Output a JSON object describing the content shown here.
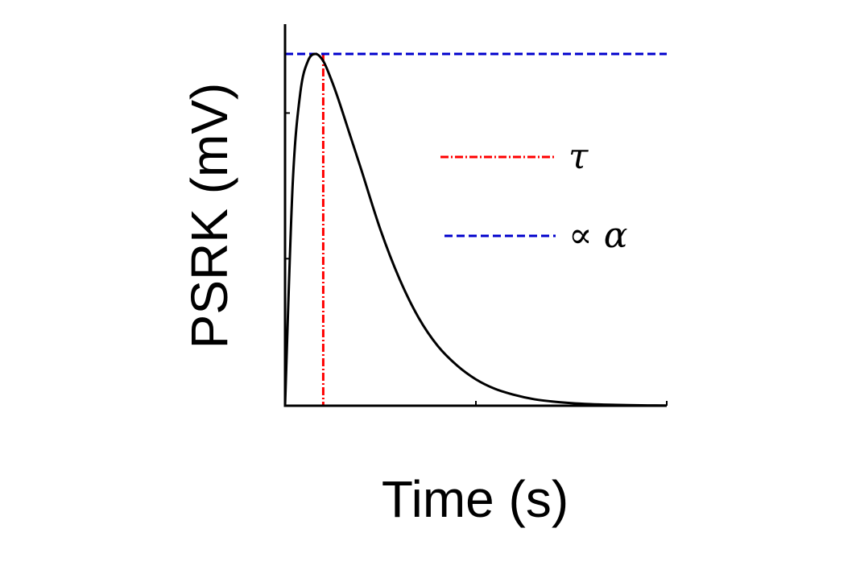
{
  "chart_data": {
    "type": "line",
    "xlabel": "Time (s)",
    "ylabel": "PSRK (mV)",
    "xlim": [
      0,
      1
    ],
    "ylim": [
      0,
      1.02
    ],
    "grid": false,
    "legend_position": "right",
    "series": [
      {
        "color": "#000000",
        "x": [
          0,
          0.02,
          0.04,
          0.06,
          0.08,
          0.1,
          0.12,
          0.14,
          0.17,
          0.2,
          0.25,
          0.3,
          0.35,
          0.4,
          0.45,
          0.5,
          0.55,
          0.6,
          0.65,
          0.7,
          0.75,
          0.8,
          0.85,
          0.9,
          0.95,
          1.0
        ],
        "y": [
          0,
          0.63,
          0.89,
          0.98,
          1.0,
          0.98,
          0.93,
          0.87,
          0.77,
          0.67,
          0.5,
          0.36,
          0.25,
          0.17,
          0.115,
          0.075,
          0.048,
          0.031,
          0.019,
          0.012,
          0.0075,
          0.0046,
          0.0028,
          0.0017,
          0.001,
          0.0006
        ]
      }
    ],
    "reference_lines": [
      {
        "kind": "vertical",
        "x": 0.1,
        "style": "dash-dot",
        "color": "#ff0000",
        "legend": "τ"
      },
      {
        "kind": "horizontal",
        "y": 1.0,
        "style": "dashed",
        "color": "#0000cc",
        "legend": "∝ α"
      }
    ]
  }
}
